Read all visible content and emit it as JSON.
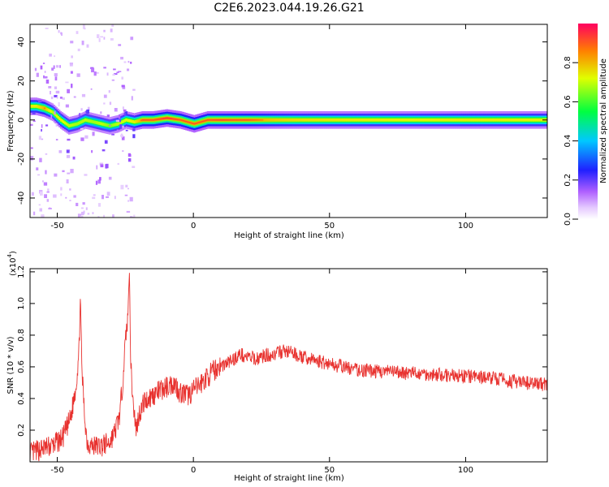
{
  "title": "C2E6.2023.044.19.26.G21",
  "colors": {
    "snr_line": "#e8322f",
    "axis": "#000000",
    "background": "#ffffff"
  },
  "chart_data": [
    {
      "type": "heatmap",
      "xlabel": "Height of straight line (km)",
      "ylabel": "Frequency (Hz)",
      "xlim": [
        -60,
        130
      ],
      "ylim": [
        -50,
        49
      ],
      "xticks": [
        -50,
        0,
        50,
        100
      ],
      "yticks": [
        -40,
        -20,
        0,
        20,
        40
      ],
      "colorbar": {
        "label": "Normalized spectral amplitude",
        "range": [
          0.0,
          1.0
        ],
        "ticks": [
          0.0,
          0.2,
          0.4,
          0.6,
          0.8
        ],
        "tick_labels": [
          "0.0",
          "0.2",
          "0.4",
          "0.6",
          "0.8"
        ],
        "colormap": "rainbow (white-violet-blue-cyan-green-yellow-red)"
      },
      "ridge": {
        "x": [
          -58,
          -55,
          -52,
          -49,
          -46,
          -43,
          -40,
          -37,
          -34,
          -31,
          -28,
          -25,
          -22,
          -19,
          -15,
          -10,
          -5,
          0,
          5,
          10,
          15,
          20,
          30,
          40,
          60,
          80,
          100,
          130
        ],
        "freq": [
          7,
          6,
          4,
          0,
          -3,
          -2,
          0,
          -1,
          -2,
          -3,
          -2,
          0,
          -1,
          0,
          0,
          1,
          0,
          -2,
          0,
          0,
          0,
          0,
          0,
          0,
          0,
          0,
          0,
          0
        ],
        "amplitude": [
          0.7,
          0.85,
          0.6,
          0.7,
          0.6,
          0.55,
          0.6,
          0.55,
          0.6,
          0.5,
          0.6,
          0.65,
          0.7,
          0.9,
          0.9,
          0.95,
          0.9,
          0.9,
          0.9,
          0.92,
          0.9,
          0.9,
          0.8,
          0.75,
          0.72,
          0.7,
          0.72,
          0.7
        ]
      }
    },
    {
      "type": "line",
      "xlabel": "Height of straight line (km)",
      "ylabel": "SNR (10 * v/v)",
      "yscale_label": "(x10",
      "yscale_exp": "4",
      "yscale_close": ")",
      "xlim": [
        -60,
        130
      ],
      "ylim": [
        0.0,
        1.22
      ],
      "xticks": [
        -50,
        0,
        50,
        100
      ],
      "yticks": [
        0.2,
        0.4,
        0.6,
        0.8,
        1.0,
        1.2
      ],
      "ytick_labels": [
        "0.2",
        "0.4",
        "0.6",
        "0.8",
        "1.0",
        "1.2"
      ],
      "series": [
        {
          "x": [
            -60,
            -56,
            -52,
            -48,
            -45,
            -43,
            -42,
            -41.5,
            -41,
            -40,
            -39,
            -37,
            -34,
            -31,
            -29,
            -27,
            -26,
            -25,
            -24,
            -23.5,
            -23,
            -22,
            -21,
            -20,
            -18,
            -15,
            -12,
            -9,
            -7,
            -5,
            -2,
            0,
            3,
            6,
            9,
            12,
            15,
            17,
            20,
            23,
            26,
            30,
            33,
            36,
            40,
            45,
            50,
            55,
            60,
            70,
            80,
            90,
            100,
            110,
            120,
            130
          ],
          "y": [
            0.05,
            0.08,
            0.1,
            0.15,
            0.28,
            0.5,
            0.7,
            1.06,
            0.6,
            0.3,
            0.12,
            0.1,
            0.1,
            0.12,
            0.18,
            0.3,
            0.5,
            0.75,
            0.95,
            1.22,
            0.6,
            0.35,
            0.2,
            0.3,
            0.38,
            0.42,
            0.45,
            0.48,
            0.5,
            0.44,
            0.42,
            0.45,
            0.5,
            0.55,
            0.6,
            0.62,
            0.65,
            0.68,
            0.66,
            0.65,
            0.67,
            0.68,
            0.7,
            0.69,
            0.66,
            0.64,
            0.62,
            0.6,
            0.58,
            0.57,
            0.56,
            0.55,
            0.54,
            0.53,
            0.5,
            0.49
          ]
        }
      ]
    }
  ]
}
